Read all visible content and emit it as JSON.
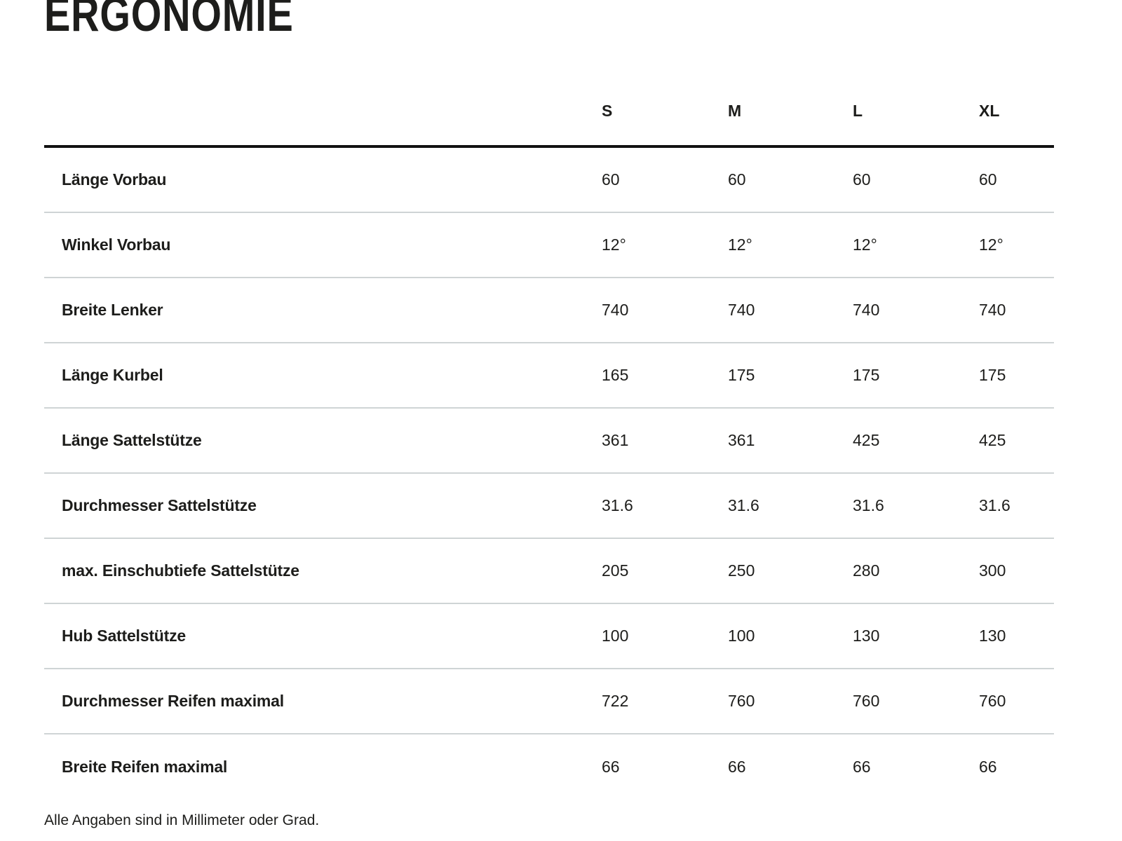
{
  "title": "ERGONOMIE",
  "table": {
    "columns": [
      "S",
      "M",
      "L",
      "XL"
    ],
    "rows": [
      {
        "label": "Länge Vorbau",
        "values": [
          "60",
          "60",
          "60",
          "60"
        ]
      },
      {
        "label": "Winkel Vorbau",
        "values": [
          "12°",
          "12°",
          "12°",
          "12°"
        ]
      },
      {
        "label": "Breite Lenker",
        "values": [
          "740",
          "740",
          "740",
          "740"
        ]
      },
      {
        "label": "Länge Kurbel",
        "values": [
          "165",
          "175",
          "175",
          "175"
        ]
      },
      {
        "label": "Länge Sattelstütze",
        "values": [
          "361",
          "361",
          "425",
          "425"
        ]
      },
      {
        "label": "Durchmesser Sattelstütze",
        "values": [
          "31.6",
          "31.6",
          "31.6",
          "31.6"
        ]
      },
      {
        "label": "max. Einschubtiefe Sattelstütze",
        "values": [
          "205",
          "250",
          "280",
          "300"
        ]
      },
      {
        "label": "Hub Sattelstütze",
        "values": [
          "100",
          "100",
          "130",
          "130"
        ]
      },
      {
        "label": "Durchmesser Reifen maximal",
        "values": [
          "722",
          "760",
          "760",
          "760"
        ]
      },
      {
        "label": "Breite Reifen maximal",
        "values": [
          "66",
          "66",
          "66",
          "66"
        ]
      }
    ],
    "footnote": "Alle Angaben sind in Millimeter oder Grad."
  },
  "colors": {
    "background": "#ffffff",
    "text": "#1d1d1b",
    "header_border": "#111111",
    "row_divider": "#cfd4d5"
  }
}
